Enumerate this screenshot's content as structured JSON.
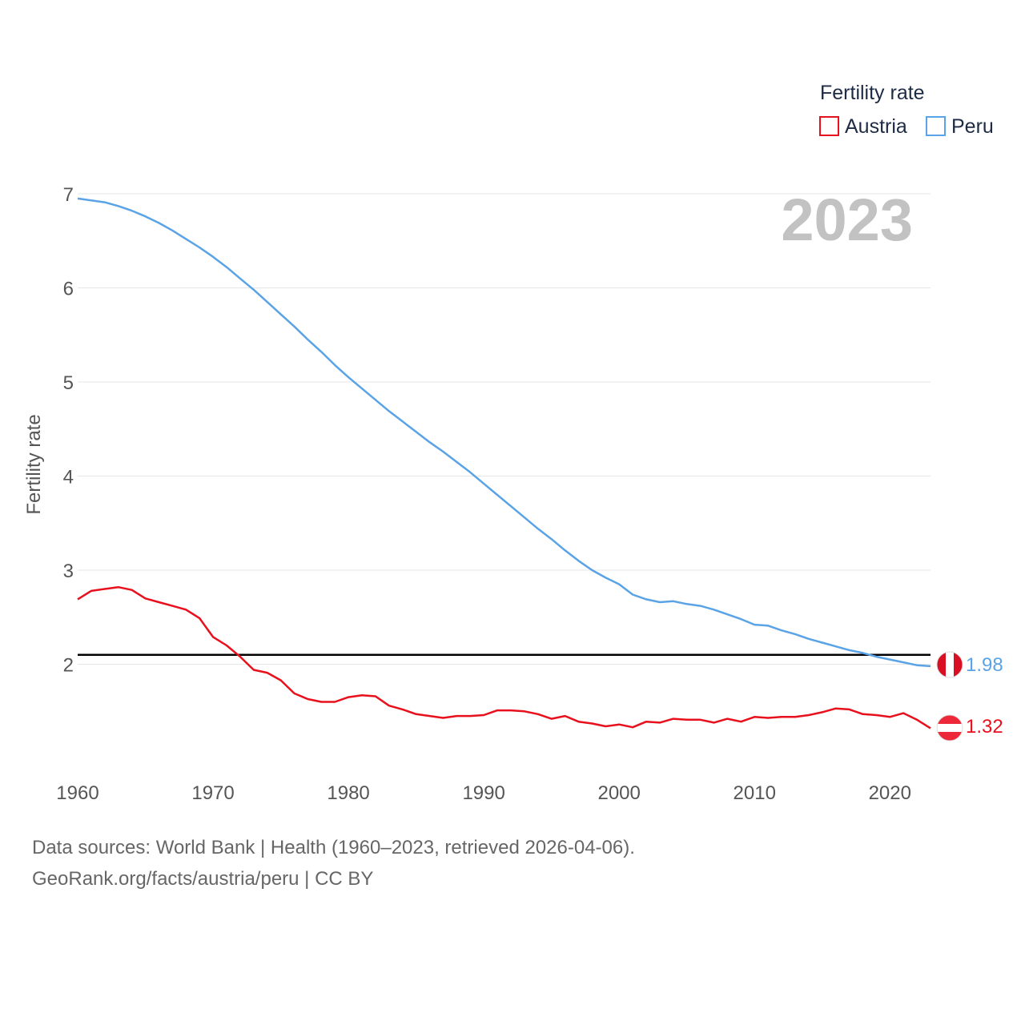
{
  "chart_data": {
    "type": "line",
    "ylabel": "Fertility rate",
    "xlabel": "",
    "xlim": [
      1960,
      2023
    ],
    "ylim": [
      1,
      7
    ],
    "x_ticks": [
      1960,
      1970,
      1980,
      1990,
      2000,
      2010,
      2020
    ],
    "y_ticks": [
      2,
      3,
      4,
      5,
      6,
      7
    ],
    "reference_line": 2.1,
    "year_label": "2023",
    "legend": {
      "title": "Fertility rate",
      "position": "top-right"
    },
    "x": [
      1960,
      1961,
      1962,
      1963,
      1964,
      1965,
      1966,
      1967,
      1968,
      1969,
      1970,
      1971,
      1972,
      1973,
      1974,
      1975,
      1976,
      1977,
      1978,
      1979,
      1980,
      1981,
      1982,
      1983,
      1984,
      1985,
      1986,
      1987,
      1988,
      1989,
      1990,
      1991,
      1992,
      1993,
      1994,
      1995,
      1996,
      1997,
      1998,
      1999,
      2000,
      2001,
      2002,
      2003,
      2004,
      2005,
      2006,
      2007,
      2008,
      2009,
      2010,
      2011,
      2012,
      2013,
      2014,
      2015,
      2016,
      2017,
      2018,
      2019,
      2020,
      2021,
      2022,
      2023
    ],
    "series": [
      {
        "name": "Austria",
        "color": "#e8101c",
        "end_label": "1.32",
        "values": [
          2.69,
          2.78,
          2.8,
          2.82,
          2.79,
          2.7,
          2.66,
          2.62,
          2.58,
          2.49,
          2.29,
          2.2,
          2.08,
          1.94,
          1.91,
          1.83,
          1.69,
          1.63,
          1.6,
          1.6,
          1.65,
          1.67,
          1.66,
          1.56,
          1.52,
          1.47,
          1.45,
          1.43,
          1.45,
          1.45,
          1.46,
          1.51,
          1.51,
          1.5,
          1.47,
          1.42,
          1.45,
          1.39,
          1.37,
          1.34,
          1.36,
          1.33,
          1.39,
          1.38,
          1.42,
          1.41,
          1.41,
          1.38,
          1.42,
          1.39,
          1.44,
          1.43,
          1.44,
          1.44,
          1.46,
          1.49,
          1.53,
          1.52,
          1.47,
          1.46,
          1.44,
          1.48,
          1.41,
          1.32
        ]
      },
      {
        "name": "Peru",
        "color": "#5aa3e6",
        "end_label": "1.98",
        "values": [
          6.95,
          6.93,
          6.91,
          6.87,
          6.82,
          6.76,
          6.69,
          6.61,
          6.52,
          6.43,
          6.33,
          6.22,
          6.1,
          5.98,
          5.85,
          5.72,
          5.59,
          5.45,
          5.32,
          5.18,
          5.05,
          4.93,
          4.81,
          4.69,
          4.58,
          4.47,
          4.36,
          4.26,
          4.15,
          4.04,
          3.92,
          3.8,
          3.68,
          3.56,
          3.44,
          3.33,
          3.21,
          3.1,
          3.0,
          2.92,
          2.85,
          2.74,
          2.69,
          2.66,
          2.67,
          2.64,
          2.62,
          2.58,
          2.53,
          2.48,
          2.42,
          2.41,
          2.36,
          2.32,
          2.27,
          2.23,
          2.19,
          2.15,
          2.12,
          2.08,
          2.05,
          2.02,
          1.99,
          1.98
        ]
      }
    ]
  },
  "source": {
    "line1": "Data sources: World Bank | Health (1960–2023, retrieved 2026-04-06).",
    "line2": "GeoRank.org/facts/austria/peru | CC BY"
  }
}
